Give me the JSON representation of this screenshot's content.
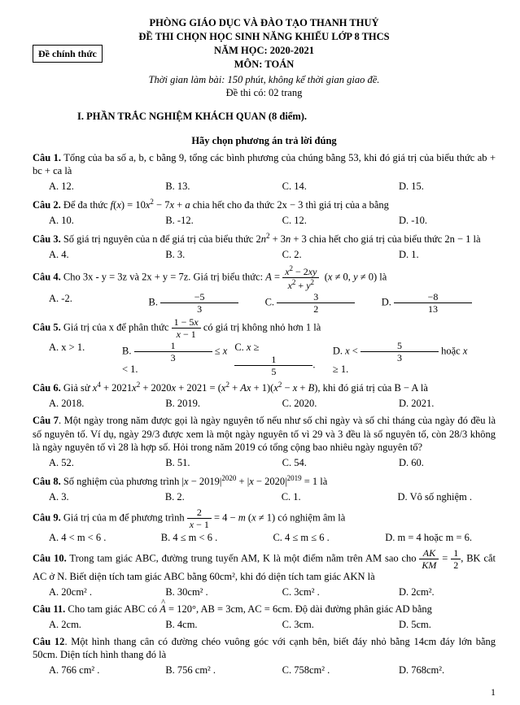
{
  "header": {
    "l1": "PHÒNG GIÁO DỤC VÀ ĐÀO TẠO THANH THUỶ",
    "l2": "ĐỀ THI CHỌN HỌC SINH NĂNG KHIẾU LỚP 8 THCS",
    "l3": "NĂM HỌC: 2020-2021",
    "l4": "MÔN: TOÁN",
    "decree": "Đề chính thức",
    "time": "Thời gian làm bài: 150 phút,  không kể thời gian giao đề.",
    "pages": "Đề thi có: 02 trang"
  },
  "section1": {
    "title": "I. PHẦN TRẮC NGHIỆM KHÁCH QUAN (8 điểm).",
    "sub": "Hãy chọn phương án trả lời đúng"
  },
  "q1": {
    "text": "Tổng của ba số a, b, c bằng 9, tổng các bình phương của chúng bằng 53, khi đó giá trị của biểu thức ab + bc + ca là",
    "A": "A. 12.",
    "B": "B.  13.",
    "C": "C. 14.",
    "D": "D. 15."
  },
  "q2": {
    "text_a": "Để đa thức ",
    "text_b": " chia hết cho đa thức 2x − 3 thì giá trị của a bằng",
    "A": "A. 10.",
    "B": "B. -12.",
    "C": "C. 12.",
    "D": "D. -10."
  },
  "q3": {
    "text_a": "Số giá trị nguyên của n để giá trị của biểu thức ",
    "text_b": " chia hết cho giá trị của biểu thức 2n − 1 là",
    "A": "A. 4.",
    "B": "B. 3.",
    "C": "C. 2.",
    "D": "D. 1."
  },
  "q4": {
    "text_a": "Cho 3x - y = 3z và 2x + y = 7z. Giá trị biểu thức: ",
    "text_b": " là",
    "A": "A. -2.",
    "B_num": "−5",
    "B_den": "3",
    "C_num": "3",
    "C_den": "2",
    "D_num": "−8",
    "D_den": "13"
  },
  "q5": {
    "text_a": "Giá trị  của x  để phân thức ",
    "text_b": " có giá trị không nhỏ hơn 1 là",
    "A": "A.  x > 1."
  },
  "q6": {
    "text_a": "Giả sử ",
    "text_b": ", khi đó giá trị của  B − A là",
    "A": "A. 2018.",
    "B": "B. 2019.",
    "C": "C. 2020.",
    "D": "D. 2021."
  },
  "q7": {
    "text": "Một ngày trong năm được gọi là ngày nguyên tố nếu như số chỉ ngày và số chỉ tháng của ngày đó đều là số nguyên tố. Ví dụ, ngày 29/3 được xem là một ngày nguyên tố vì 29 và 3 đều là số nguyên tố, còn 28/3 không là ngày nguyên tố vì 28 là hợp số. Hỏi trong năm 2019 có tổng cộng bao nhiêu ngày nguyên tố?",
    "A": "A. 52.",
    "B": "B.  51.",
    "C": "C. 54.",
    "D": "D. 60."
  },
  "q8": {
    "text_a": "Số nghiệm của phương trình ",
    "text_b": " là",
    "A": "A. 3.",
    "B": "B. 2.",
    "C": "C.  1.",
    "D": "D. Vô số nghiệm ."
  },
  "q9": {
    "text_a": "Giá trị của m để phương trình ",
    "text_b": " có nghiệm âm là",
    "A": "A. 4 < m < 6 .",
    "B": "B. 4 ≤ m < 6 .",
    "C": "C.  4 ≤ m ≤ 6 .",
    "D": "D. m = 4 hoặc m = 6."
  },
  "q10": {
    "text_a": "Trong tam giác ABC, đường trung tuyến AM, K là một điểm nằm trên AM sao cho",
    "text_b": ", BK cắt AC ở N. Biết diện tích tam giác ABC bằng 60cm², khi đó diện tích tam giác AKN là",
    "A": "A. 20cm² .",
    "B": "B. 30cm² .",
    "C": "C. 3cm² .",
    "D": "D. 2cm²."
  },
  "q11": {
    "text_a": "Cho tam giác ABC có ",
    "text_b": ", AB = 3cm, AC = 6cm. Độ dài đường phân giác AD bằng",
    "A": "A.  2cm.",
    "B": "B. 4cm.",
    "C": "C. 3cm.",
    "D": "D. 5cm."
  },
  "q12": {
    "text": "Một hình thang cân có đường chéo vuông góc với cạnh bên, biết đáy nhỏ bằng 14cm đáy lớn bằng 50cm. Diện tích hình thang đó là",
    "A": "A. 766 cm² .",
    "B": "B. 756 cm² .",
    "C": "C. 758cm² .",
    "D": "D. 768cm²."
  },
  "pagenum": "1"
}
